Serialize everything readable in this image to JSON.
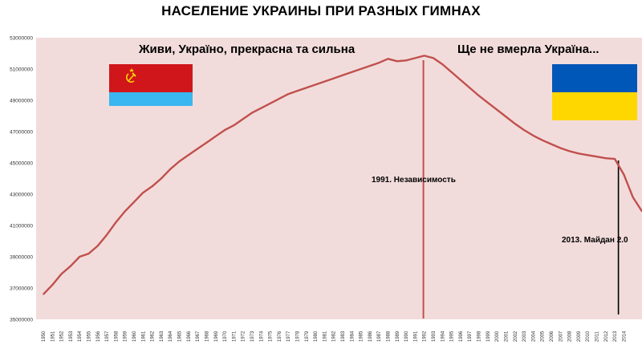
{
  "chart_data": {
    "type": "line",
    "title": "НАСЕЛЕНИЕ УКРАИНЫ ПРИ РАЗНЫХ ГИМНАХ",
    "xlabel": "",
    "ylabel": "",
    "ylim": [
      35000000,
      53000000
    ],
    "yticks": [
      35000000,
      37000000,
      39000000,
      41000000,
      43000000,
      45000000,
      47000000,
      49000000,
      51000000,
      53000000
    ],
    "grid": false,
    "series": [
      {
        "color": "#c0504d",
        "x": [
          1950,
          1951,
          1952,
          1953,
          1954,
          1955,
          1956,
          1957,
          1958,
          1959,
          1960,
          1961,
          1962,
          1963,
          1964,
          1965,
          1966,
          1967,
          1968,
          1969,
          1970,
          1971,
          1972,
          1973,
          1974,
          1975,
          1976,
          1977,
          1978,
          1979,
          1980,
          1981,
          1982,
          1983,
          1984,
          1985,
          1986,
          1987,
          1988,
          1989,
          1990,
          1991,
          1992,
          1993,
          1994,
          1995,
          1996,
          1997,
          1998,
          1999,
          2000,
          2001,
          2002,
          2003,
          2004,
          2005,
          2006,
          2007,
          2008,
          2009,
          2010,
          2011,
          2012,
          2013,
          2014,
          2015,
          2016
        ],
        "values": [
          36600000,
          37200000,
          37900000,
          38400000,
          39000000,
          39200000,
          39700000,
          40400000,
          41200000,
          41900000,
          42500000,
          43100000,
          43500000,
          44000000,
          44600000,
          45100000,
          45500000,
          45900000,
          46300000,
          46700000,
          47100000,
          47400000,
          47800000,
          48200000,
          48500000,
          48800000,
          49100000,
          49400000,
          49600000,
          49800000,
          50000000,
          50200000,
          50400000,
          50600000,
          50800000,
          51000000,
          51200000,
          51400000,
          51650000,
          51500000,
          51550000,
          51700000,
          51850000,
          51700000,
          51300000,
          50800000,
          50300000,
          49800000,
          49300000,
          48850000,
          48400000,
          47950000,
          47500000,
          47100000,
          46750000,
          46450000,
          46200000,
          45950000,
          45750000,
          45600000,
          45500000,
          45400000,
          45300000,
          45250000,
          44250000,
          42800000,
          41900000
        ]
      }
    ],
    "x_tick_labels": [
      "1950",
      "1951",
      "1952",
      "1953",
      "1954",
      "1955",
      "1956",
      "1957",
      "1958",
      "1959",
      "1960",
      "1961",
      "1962",
      "1963",
      "1964",
      "1965",
      "1966",
      "1967",
      "1968",
      "1969",
      "1970",
      "1971",
      "1972",
      "1973",
      "1974",
      "1975",
      "1976",
      "1977",
      "1978",
      "1979",
      "1980",
      "1981",
      "1982",
      "1983",
      "1984",
      "1985",
      "1986",
      "1987",
      "1988",
      "1989",
      "1990",
      "1991",
      "1992",
      "1993",
      "1994",
      "1995",
      "1996",
      "1997",
      "1998",
      "1999",
      "2000",
      "2001",
      "2002",
      "2003",
      "2004",
      "2005",
      "2006",
      "2007",
      "2008",
      "2009",
      "2010",
      "2011",
      "2012",
      "2013",
      "2014"
    ],
    "y_tick_labels": [
      "35000000",
      "37000000",
      "39000000",
      "41000000",
      "43000000",
      "45000000",
      "47000000",
      "49000000",
      "51000000",
      "53000000"
    ],
    "annotations": {
      "soviet_caption": "Живи, Україно, прекрасна та сильна",
      "ukraine_caption": "Ще не вмерла Україна...",
      "independence_label": "1991.  Независимость",
      "independence_year": 1991,
      "maidan_label": "2013. Майдан 2.0",
      "maidan_year": 2013
    },
    "colors": {
      "plot_background": "#f2dcdb",
      "line": "#c0504d",
      "independence_marker": "#c0504d",
      "maidan_marker": "#000000",
      "ussr_flag_red": "#d0161b",
      "ussr_flag_blue": "#3ab6f0",
      "ukraine_flag_blue": "#0057b8",
      "ukraine_flag_yellow": "#ffd700"
    }
  }
}
